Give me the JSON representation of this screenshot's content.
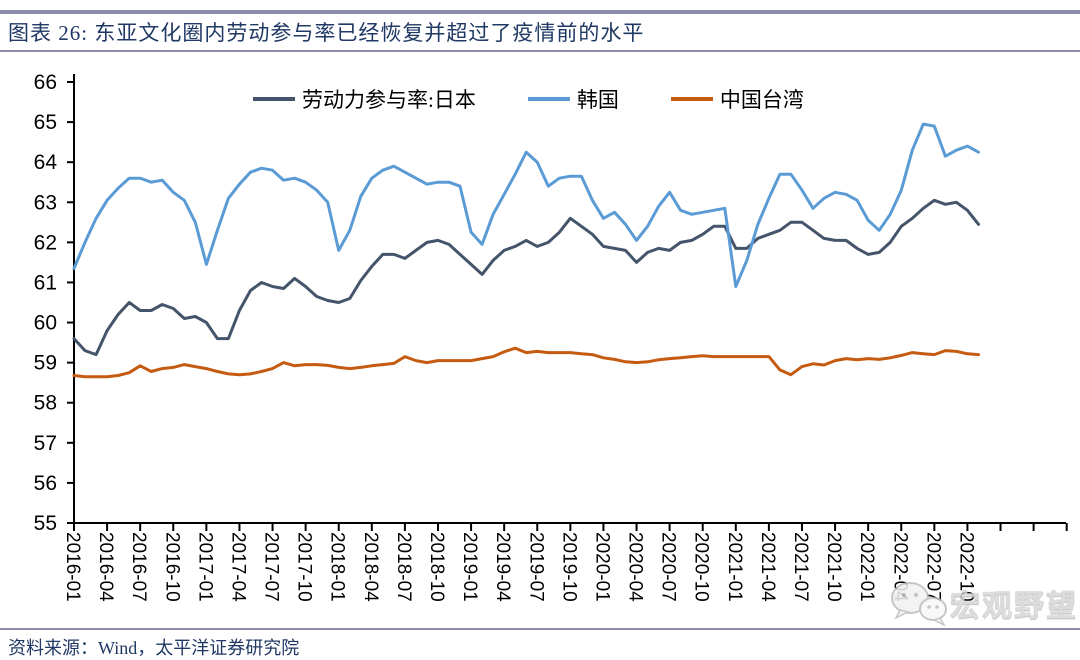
{
  "header": {
    "title": "图表 26:  东亚文化圈内劳动参与率已经恢复并超过了疫情前的水平"
  },
  "footer": {
    "source": "资料来源：Wind，太平洋证券研究院"
  },
  "watermark": {
    "logo": "wechat-bubbles-icon",
    "text": "宏观野望"
  },
  "colors": {
    "accent_bar": "#8c8caa",
    "title_text": "#1f3864",
    "axis": "#000000"
  },
  "chart_data": {
    "type": "line",
    "title": "东亚文化圈内劳动参与率已经恢复并超过了疫情前的水平",
    "xlabel": "",
    "ylabel": "",
    "ylim": [
      55,
      66
    ],
    "y_tick_step": 1,
    "grid": false,
    "legend_position": "top",
    "x": [
      "2016-01",
      "2016-02",
      "2016-03",
      "2016-04",
      "2016-05",
      "2016-06",
      "2016-07",
      "2016-08",
      "2016-09",
      "2016-10",
      "2016-11",
      "2016-12",
      "2017-01",
      "2017-02",
      "2017-03",
      "2017-04",
      "2017-05",
      "2017-06",
      "2017-07",
      "2017-08",
      "2017-09",
      "2017-10",
      "2017-11",
      "2017-12",
      "2018-01",
      "2018-02",
      "2018-03",
      "2018-04",
      "2018-05",
      "2018-06",
      "2018-07",
      "2018-08",
      "2018-09",
      "2018-10",
      "2018-11",
      "2018-12",
      "2019-01",
      "2019-02",
      "2019-03",
      "2019-04",
      "2019-05",
      "2019-06",
      "2019-07",
      "2019-08",
      "2019-09",
      "2019-10",
      "2019-11",
      "2019-12",
      "2020-01",
      "2020-02",
      "2020-03",
      "2020-04",
      "2020-05",
      "2020-06",
      "2020-07",
      "2020-08",
      "2020-09",
      "2020-10",
      "2020-11",
      "2020-12",
      "2021-01",
      "2021-02",
      "2021-03",
      "2021-04",
      "2021-05",
      "2021-06",
      "2021-07",
      "2021-08",
      "2021-09",
      "2021-10",
      "2021-11",
      "2021-12",
      "2022-01",
      "2022-02",
      "2022-03",
      "2022-04",
      "2022-05",
      "2022-06",
      "2022-07",
      "2022-08",
      "2022-09",
      "2022-10",
      "2022-11"
    ],
    "x_tick_labels": [
      "2016-01",
      "2016-04",
      "2016-07",
      "2016-10",
      "2017-01",
      "2017-04",
      "2017-07",
      "2017-10",
      "2018-01",
      "2018-04",
      "2018-07",
      "2018-10",
      "2019-01",
      "2019-04",
      "2019-07",
      "2019-10",
      "2020-01",
      "2020-04",
      "2020-07",
      "2020-10",
      "2021-01",
      "2021-04",
      "2021-07",
      "2021-10",
      "2022-01",
      "2022-04",
      "2022-07",
      "2022-10"
    ],
    "series": [
      {
        "name": "劳动力参与率:日本",
        "color": "#44546A",
        "values": [
          59.6,
          59.3,
          59.2,
          59.8,
          60.2,
          60.5,
          60.3,
          60.3,
          60.45,
          60.35,
          60.1,
          60.15,
          60.0,
          59.6,
          59.6,
          60.3,
          60.8,
          61.0,
          60.9,
          60.85,
          61.1,
          60.9,
          60.65,
          60.55,
          60.5,
          60.6,
          61.05,
          61.4,
          61.7,
          61.7,
          61.6,
          61.8,
          62.0,
          62.05,
          61.95,
          61.7,
          61.45,
          61.2,
          61.55,
          61.8,
          61.9,
          62.05,
          61.9,
          62.0,
          62.25,
          62.6,
          62.4,
          62.2,
          61.9,
          61.85,
          61.8,
          61.5,
          61.75,
          61.85,
          61.8,
          62.0,
          62.05,
          62.2,
          62.4,
          62.4,
          61.85,
          61.85,
          62.1,
          62.2,
          62.3,
          62.5,
          62.5,
          62.3,
          62.1,
          62.05,
          62.05,
          61.85,
          61.7,
          61.75,
          62.0,
          62.4,
          62.6,
          62.85,
          63.05,
          62.95,
          63.0,
          62.8,
          62.45
        ]
      },
      {
        "name": "韩国",
        "color": "#5B9BD5",
        "values": [
          61.35,
          62.0,
          62.6,
          63.05,
          63.35,
          63.6,
          63.6,
          63.5,
          63.55,
          63.25,
          63.05,
          62.5,
          61.45,
          62.3,
          63.1,
          63.45,
          63.75,
          63.85,
          63.8,
          63.55,
          63.6,
          63.5,
          63.3,
          63.0,
          61.8,
          62.3,
          63.15,
          63.6,
          63.8,
          63.9,
          63.75,
          63.6,
          63.45,
          63.5,
          63.5,
          63.4,
          62.25,
          61.95,
          62.7,
          63.2,
          63.7,
          64.25,
          64.0,
          63.4,
          63.6,
          63.65,
          63.65,
          63.05,
          62.6,
          62.75,
          62.45,
          62.05,
          62.4,
          62.9,
          63.25,
          62.8,
          62.7,
          62.75,
          62.8,
          62.85,
          60.9,
          61.55,
          62.45,
          63.1,
          63.7,
          63.7,
          63.3,
          62.85,
          63.1,
          63.25,
          63.2,
          63.05,
          62.55,
          62.3,
          62.7,
          63.3,
          64.3,
          64.95,
          64.9,
          64.15,
          64.3,
          64.4,
          64.25
        ]
      },
      {
        "name": "中国台湾",
        "color": "#C55A11",
        "values": [
          58.68,
          58.65,
          58.65,
          58.65,
          58.68,
          58.75,
          58.92,
          58.78,
          58.85,
          58.88,
          58.95,
          58.9,
          58.85,
          58.78,
          58.72,
          58.7,
          58.72,
          58.78,
          58.85,
          59.0,
          58.92,
          58.95,
          58.95,
          58.93,
          58.88,
          58.85,
          58.88,
          58.92,
          58.95,
          58.98,
          59.15,
          59.05,
          59.0,
          59.05,
          59.05,
          59.05,
          59.05,
          59.1,
          59.15,
          59.27,
          59.36,
          59.25,
          59.28,
          59.25,
          59.25,
          59.25,
          59.22,
          59.2,
          59.12,
          59.08,
          59.02,
          59.0,
          59.02,
          59.07,
          59.1,
          59.12,
          59.15,
          59.17,
          59.15,
          59.15,
          59.15,
          59.15,
          59.15,
          59.15,
          58.82,
          58.7,
          58.9,
          58.97,
          58.94,
          59.05,
          59.1,
          59.07,
          59.1,
          59.08,
          59.12,
          59.18,
          59.25,
          59.22,
          59.2,
          59.3,
          59.28,
          59.22,
          59.2
        ]
      }
    ]
  }
}
